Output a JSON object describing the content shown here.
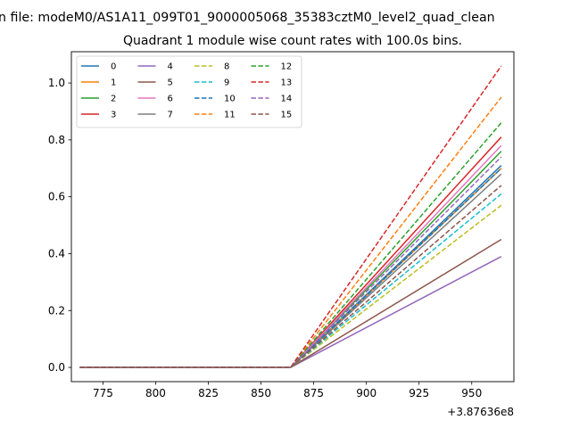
{
  "chart_data": {
    "type": "line",
    "suptitle": "n file: modeM0/AS1A11_099T01_9000005068_35383cztM0_level2_quad_clean",
    "title": "Quadrant 1 module wise count rates with 100.0s bins.",
    "xlabel": "",
    "ylabel": "",
    "offset_label": "+3.87636e8",
    "xlim": [
      760,
      970
    ],
    "ylim": [
      -0.05,
      1.11
    ],
    "xticks": [
      775,
      800,
      825,
      850,
      875,
      900,
      925,
      950
    ],
    "xtick_labels": [
      "775",
      "800",
      "825",
      "850",
      "875",
      "900",
      "925",
      "950"
    ],
    "yticks": [
      0.0,
      0.2,
      0.4,
      0.6,
      0.8,
      1.0
    ],
    "ytick_labels": [
      "0.0",
      "0.2",
      "0.4",
      "0.6",
      "0.8",
      "1.0"
    ],
    "grid": false,
    "legend": {
      "placement": "top-left",
      "columns": 4
    },
    "x": [
      764,
      864,
      964
    ],
    "series": [
      {
        "name": "0",
        "color": "#1f77b4",
        "dash": "solid",
        "values": [
          0,
          0,
          0.71
        ]
      },
      {
        "name": "1",
        "color": "#ff7f0e",
        "dash": "solid",
        "values": [
          0,
          0,
          0.7
        ]
      },
      {
        "name": "2",
        "color": "#2ca02c",
        "dash": "solid",
        "values": [
          0,
          0,
          0.76
        ]
      },
      {
        "name": "3",
        "color": "#d62728",
        "dash": "solid",
        "values": [
          0,
          0,
          0.81
        ]
      },
      {
        "name": "4",
        "color": "#9467bd",
        "dash": "solid",
        "values": [
          0,
          0,
          0.39
        ]
      },
      {
        "name": "5",
        "color": "#8c564b",
        "dash": "solid",
        "values": [
          0,
          0,
          0.45
        ]
      },
      {
        "name": "6",
        "color": "#e377c2",
        "dash": "solid",
        "values": [
          0,
          0,
          0.78
        ]
      },
      {
        "name": "7",
        "color": "#7f7f7f",
        "dash": "solid",
        "values": [
          0,
          0,
          0.68
        ]
      },
      {
        "name": "8",
        "color": "#bcbd22",
        "dash": "dashed",
        "values": [
          0,
          0,
          0.57
        ]
      },
      {
        "name": "9",
        "color": "#17becf",
        "dash": "dashed",
        "values": [
          0,
          0,
          0.61
        ]
      },
      {
        "name": "10",
        "color": "#1f77b4",
        "dash": "dashed",
        "values": [
          0,
          0,
          0.7
        ]
      },
      {
        "name": "11",
        "color": "#ff7f0e",
        "dash": "dashed",
        "values": [
          0,
          0,
          0.95
        ]
      },
      {
        "name": "12",
        "color": "#2ca02c",
        "dash": "dashed",
        "values": [
          0,
          0,
          0.86
        ]
      },
      {
        "name": "13",
        "color": "#d62728",
        "dash": "dashed",
        "values": [
          0,
          0,
          1.06
        ]
      },
      {
        "name": "14",
        "color": "#9467bd",
        "dash": "dashed",
        "values": [
          0,
          0,
          0.74
        ]
      },
      {
        "name": "15",
        "color": "#8c564b",
        "dash": "dashed",
        "values": [
          0,
          0,
          0.64
        ]
      }
    ]
  }
}
